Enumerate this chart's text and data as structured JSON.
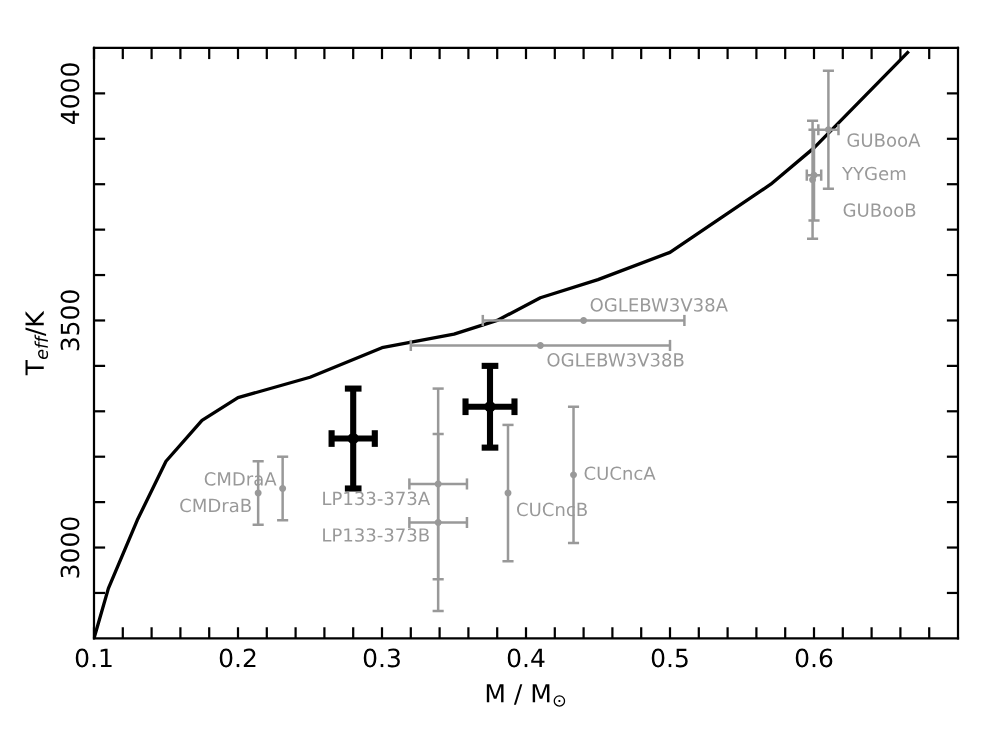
{
  "chart_data": {
    "type": "scatter",
    "xlabel": "M / M$_{⊙}$",
    "ylabel": "T$_{eff}$/K",
    "xlim": [
      0.1,
      0.7
    ],
    "ylim": [
      2800,
      4100
    ],
    "xticks": [
      0.1,
      {
        "value": 0.12,
        "label": null
      },
      {
        "value": 0.14,
        "label": null
      },
      {
        "value": 0.16,
        "label": null
      },
      {
        "value": 0.18,
        "label": null
      },
      0.2,
      {
        "value": 0.22,
        "label": null
      },
      {
        "value": 0.24,
        "label": null
      },
      {
        "value": 0.26,
        "label": null
      },
      {
        "value": 0.28,
        "label": null
      },
      0.3,
      {
        "value": 0.32,
        "label": null
      },
      {
        "value": 0.34,
        "label": null
      },
      {
        "value": 0.36,
        "label": null
      },
      {
        "value": 0.38,
        "label": null
      },
      0.4,
      {
        "value": 0.42,
        "label": null
      },
      {
        "value": 0.44,
        "label": null
      },
      {
        "value": 0.46,
        "label": null
      },
      {
        "value": 0.48,
        "label": null
      },
      0.5,
      {
        "value": 0.52,
        "label": null
      },
      {
        "value": 0.54,
        "label": null
      },
      {
        "value": 0.56,
        "label": null
      },
      {
        "value": 0.58,
        "label": null
      },
      0.6,
      {
        "value": 0.62,
        "label": null
      },
      {
        "value": 0.64,
        "label": null
      },
      {
        "value": 0.66,
        "label": null
      },
      {
        "value": 0.68,
        "label": null
      }
    ],
    "yticks": [
      {
        "value": 2900,
        "label": null
      },
      3000,
      {
        "value": 3100,
        "label": null
      },
      {
        "value": 3200,
        "label": null
      },
      {
        "value": 3300,
        "label": null
      },
      {
        "value": 3400,
        "label": null
      },
      3500,
      {
        "value": 3600,
        "label": null
      },
      {
        "value": 3700,
        "label": null
      },
      {
        "value": 3800,
        "label": null
      },
      {
        "value": 3900,
        "label": null
      },
      4000
    ],
    "grid": false,
    "legend": false,
    "series": [
      {
        "type": "line",
        "color": "#000000",
        "x": [
          0.1,
          0.11,
          0.13,
          0.15,
          0.175,
          0.2,
          0.25,
          0.3,
          0.35,
          0.38,
          0.41,
          0.45,
          0.5,
          0.57,
          0.6,
          0.665
        ],
        "values": [
          2800,
          2910,
          3060,
          3190,
          3280,
          3330,
          3375,
          3440,
          3470,
          3500,
          3550,
          3590,
          3650,
          3800,
          3880,
          4090
        ]
      },
      {
        "name": "CMDraA",
        "color": "#999999",
        "x": [
          0.231
        ],
        "values": [
          3130
        ],
        "errors": [
          70
        ]
      },
      {
        "name": "CMDraB",
        "color": "#999999",
        "x": [
          0.214
        ],
        "values": [
          3120
        ],
        "errors": [
          70
        ]
      },
      {
        "name": "LP133-373A",
        "color": "#999999",
        "x": [
          0.339
        ],
        "values": [
          3140
        ],
        "errors": [
          210
        ],
        "xerrors": [
          0.02
        ]
      },
      {
        "name": "LP133-373B",
        "color": "#999999",
        "x": [
          0.339
        ],
        "values": [
          3055
        ],
        "errors": [
          195
        ],
        "xerrors": [
          0.02
        ]
      },
      {
        "name": "CUCncB",
        "color": "#999999",
        "x": [
          0.3875
        ],
        "values": [
          3120
        ],
        "errors": [
          150
        ]
      },
      {
        "name": "CUCncA",
        "color": "#999999",
        "x": [
          0.433
        ],
        "values": [
          3160
        ],
        "errors": [
          150
        ]
      },
      {
        "name": "OGLEBW3V38A",
        "color": "#999999",
        "x": [
          0.44
        ],
        "values": [
          3500
        ],
        "xerrors": [
          0.07
        ]
      },
      {
        "name": "OGLEBW3V38B",
        "color": "#999999",
        "x": [
          0.41
        ],
        "values": [
          3445
        ],
        "xerrors": [
          0.09
        ]
      },
      {
        "name": "GUBooA",
        "color": "#999999",
        "x": [
          0.61
        ],
        "values": [
          3920
        ],
        "errors": [
          130
        ],
        "xerrors": [
          0.007
        ]
      },
      {
        "name": "YYGem",
        "color": "#999999",
        "x": [
          0.6
        ],
        "values": [
          3820
        ],
        "errors": [
          100
        ],
        "xerrors": [
          0.005
        ]
      },
      {
        "name": "GUBooB",
        "color": "#999999",
        "x": [
          0.599
        ],
        "values": [
          3810
        ],
        "errors": [
          130
        ]
      },
      {
        "color": "#000000",
        "x": [
          0.28,
          0.375
        ],
        "values": [
          3240,
          3310
        ],
        "errors": [
          110,
          90
        ],
        "xerrors": [
          0.015,
          0.017
        ]
      }
    ]
  }
}
